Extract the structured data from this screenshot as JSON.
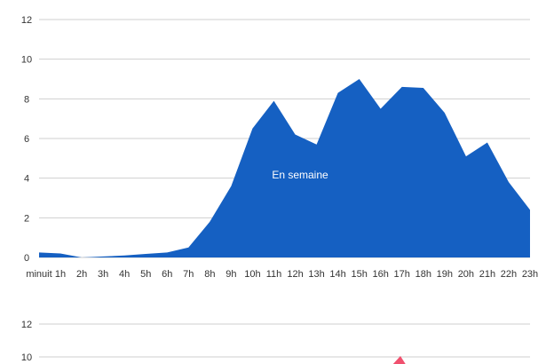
{
  "chart_data": [
    {
      "type": "area",
      "x": [
        "minuit",
        "1h",
        "2h",
        "3h",
        "4h",
        "5h",
        "6h",
        "7h",
        "8h",
        "9h",
        "10h",
        "11h",
        "12h",
        "13h",
        "14h",
        "15h",
        "16h",
        "17h",
        "18h",
        "19h",
        "20h",
        "21h",
        "22h",
        "23h"
      ],
      "series": [
        {
          "name": "En semaine",
          "values": [
            0.25,
            0.2,
            0.0,
            0.05,
            0.1,
            0.18,
            0.25,
            0.5,
            1.8,
            3.6,
            6.5,
            7.9,
            6.2,
            5.7,
            8.3,
            9.0,
            7.5,
            8.6,
            8.55,
            7.3,
            5.1,
            5.8,
            3.8,
            2.4
          ],
          "color": "#1560c2"
        }
      ],
      "ylim": [
        0,
        12
      ],
      "yticks": [
        "0",
        "2",
        "4",
        "6",
        "8",
        "10",
        "12"
      ],
      "grid": true
    },
    {
      "type": "area",
      "ylim": [
        0,
        12
      ],
      "yticks": [
        "10",
        "12"
      ],
      "grid": true,
      "series": [
        {
          "values": [],
          "color": "#f0506e"
        }
      ]
    }
  ]
}
